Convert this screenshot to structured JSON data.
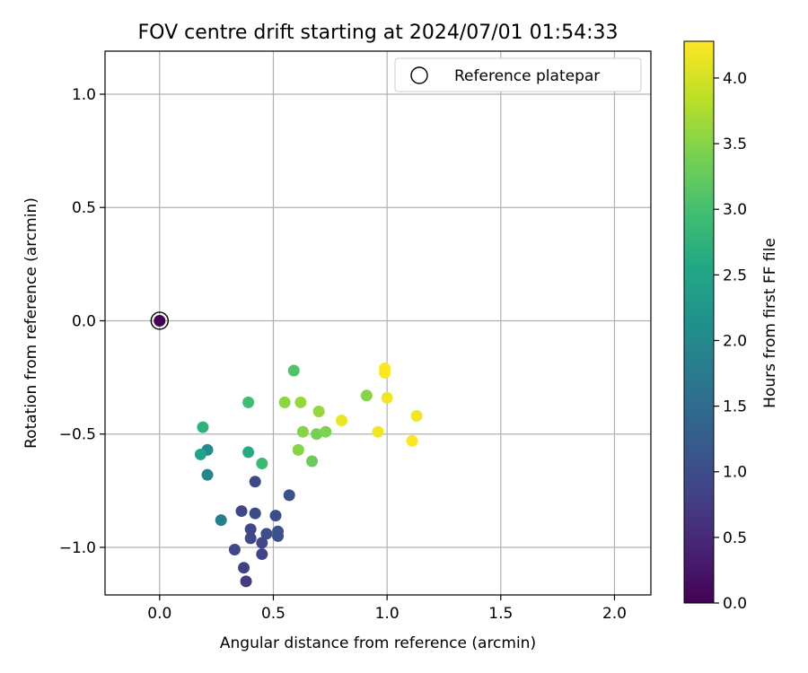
{
  "chart_data": {
    "type": "scatter",
    "title": "FOV centre drift starting at 2024/07/01 01:54:33",
    "xlabel": "Angular distance from reference (arcmin)",
    "ylabel": "Rotation from reference (arcmin)",
    "xlim": [
      -0.24,
      2.16
    ],
    "ylim": [
      -1.21,
      1.19
    ],
    "xticks": [
      0.0,
      0.5,
      1.0,
      1.5,
      2.0
    ],
    "xtick_labels": [
      "0.0",
      "0.5",
      "1.0",
      "1.5",
      "2.0"
    ],
    "yticks": [
      -1.0,
      -0.5,
      0.0,
      0.5,
      1.0
    ],
    "ytick_labels": [
      "−1.0",
      "−0.5",
      "0.0",
      "0.5",
      "1.0"
    ],
    "grid": true,
    "legend": {
      "position": "top-right",
      "entries": [
        {
          "label": "Reference platepar",
          "marker": "open-circle",
          "color": "#000000"
        }
      ]
    },
    "colorbar": {
      "label": "Hours from first FF file",
      "range": [
        0.0,
        4.28
      ],
      "colormap": "viridis",
      "ticks": [
        0.0,
        0.5,
        1.0,
        1.5,
        2.0,
        2.5,
        3.0,
        3.5,
        4.0
      ],
      "tick_labels": [
        "0.0",
        "0.5",
        "1.0",
        "1.5",
        "2.0",
        "2.5",
        "3.0",
        "3.5",
        "4.0"
      ]
    },
    "reference_point": {
      "x": 0.0,
      "y": 0.0,
      "hours": 0.0
    },
    "points": [
      {
        "x": 0.38,
        "y": -1.15,
        "hours": 0.75
      },
      {
        "x": 0.37,
        "y": -1.09,
        "hours": 0.8
      },
      {
        "x": 0.33,
        "y": -1.01,
        "hours": 0.9
      },
      {
        "x": 0.45,
        "y": -1.03,
        "hours": 0.85
      },
      {
        "x": 0.45,
        "y": -0.98,
        "hours": 0.95
      },
      {
        "x": 0.47,
        "y": -0.94,
        "hours": 1.0
      },
      {
        "x": 0.52,
        "y": -0.95,
        "hours": 1.05
      },
      {
        "x": 0.52,
        "y": -0.93,
        "hours": 1.1
      },
      {
        "x": 0.4,
        "y": -0.96,
        "hours": 0.95
      },
      {
        "x": 0.4,
        "y": -0.92,
        "hours": 0.9
      },
      {
        "x": 0.36,
        "y": -0.84,
        "hours": 0.9
      },
      {
        "x": 0.42,
        "y": -0.85,
        "hours": 0.95
      },
      {
        "x": 0.51,
        "y": -0.86,
        "hours": 1.0
      },
      {
        "x": 0.57,
        "y": -0.77,
        "hours": 1.1
      },
      {
        "x": 0.42,
        "y": -0.71,
        "hours": 0.95
      },
      {
        "x": 0.27,
        "y": -0.88,
        "hours": 1.8
      },
      {
        "x": 0.21,
        "y": -0.68,
        "hours": 1.95
      },
      {
        "x": 0.21,
        "y": -0.57,
        "hours": 2.05
      },
      {
        "x": 0.18,
        "y": -0.59,
        "hours": 2.45
      },
      {
        "x": 0.19,
        "y": -0.47,
        "hours": 2.75
      },
      {
        "x": 0.39,
        "y": -0.58,
        "hours": 2.6
      },
      {
        "x": 0.45,
        "y": -0.63,
        "hours": 2.9
      },
      {
        "x": 0.39,
        "y": -0.36,
        "hours": 2.95
      },
      {
        "x": 0.59,
        "y": -0.22,
        "hours": 3.1
      },
      {
        "x": 0.55,
        "y": -0.36,
        "hours": 3.55
      },
      {
        "x": 0.62,
        "y": -0.36,
        "hours": 3.6
      },
      {
        "x": 0.7,
        "y": -0.4,
        "hours": 3.6
      },
      {
        "x": 0.63,
        "y": -0.49,
        "hours": 3.5
      },
      {
        "x": 0.69,
        "y": -0.5,
        "hours": 3.4
      },
      {
        "x": 0.73,
        "y": -0.49,
        "hours": 3.45
      },
      {
        "x": 0.61,
        "y": -0.57,
        "hours": 3.5
      },
      {
        "x": 0.67,
        "y": -0.62,
        "hours": 3.3
      },
      {
        "x": 0.91,
        "y": -0.33,
        "hours": 3.5
      },
      {
        "x": 0.8,
        "y": -0.44,
        "hours": 4.15
      },
      {
        "x": 0.96,
        "y": -0.49,
        "hours": 4.2
      },
      {
        "x": 0.99,
        "y": -0.21,
        "hours": 4.25
      },
      {
        "x": 0.99,
        "y": -0.23,
        "hours": 4.25
      },
      {
        "x": 1.0,
        "y": -0.34,
        "hours": 4.2
      },
      {
        "x": 1.13,
        "y": -0.42,
        "hours": 4.2
      },
      {
        "x": 1.11,
        "y": -0.53,
        "hours": 4.25
      }
    ]
  }
}
